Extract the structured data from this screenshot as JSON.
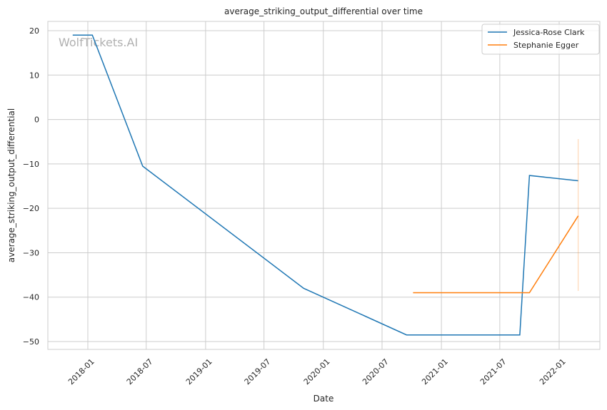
{
  "chart_data": {
    "type": "line",
    "title": "average_striking_output_differential over time",
    "xlabel": "Date",
    "ylabel": "average_striking_output_differential",
    "watermark": "WolfTickets.AI",
    "x_ticks": [
      "2018-01",
      "2018-07",
      "2019-01",
      "2019-07",
      "2020-01",
      "2020-07",
      "2021-01",
      "2021-07",
      "2022-01"
    ],
    "y_ticks": [
      20,
      10,
      0,
      -10,
      -20,
      -30,
      -40,
      -50
    ],
    "xlim": [
      "2017-10-05",
      "2022-04-25"
    ],
    "ylim": [
      -52,
      22
    ],
    "grid": true,
    "legend_position": "top-right",
    "series": [
      {
        "name": "Jessica-Rose Clark",
        "color": "#1f77b4",
        "x": [
          "2017-11-15",
          "2018-01-15",
          "2018-06-20",
          "2019-11-01",
          "2020-09-15",
          "2021-09-01",
          "2021-10-01",
          "2022-03-01"
        ],
        "y": [
          19,
          19,
          -10.5,
          -38,
          -48.5,
          -48.5,
          -12.6,
          -13.8
        ]
      },
      {
        "name": "Stephanie Egger",
        "color": "#ff7f0e",
        "x": [
          "2020-10-05",
          "2021-10-01",
          "2022-03-01"
        ],
        "y": [
          -39,
          -39,
          -21.7
        ],
        "interval": {
          "x": "2022-03-01",
          "low": -38.6,
          "high": -4.4
        }
      }
    ]
  }
}
